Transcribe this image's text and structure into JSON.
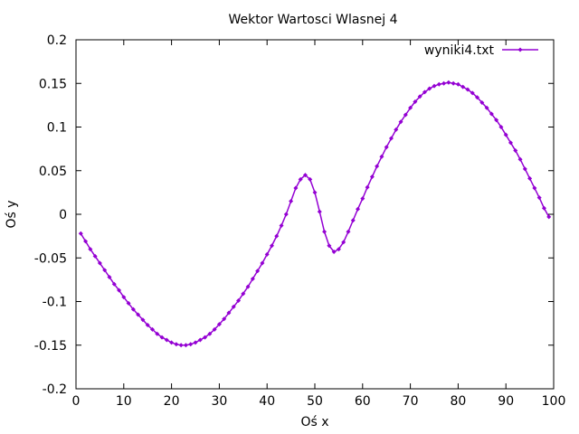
{
  "chart_data": {
    "type": "line",
    "title": "Wektor Wartosci Wlasnej 4",
    "xlabel": "Oś x",
    "ylabel": "Oś y",
    "xlim": [
      0,
      100
    ],
    "ylim": [
      -0.2,
      0.2
    ],
    "x_ticks": [
      "0",
      "10",
      "20",
      "30",
      "40",
      "50",
      "60",
      "70",
      "80",
      "90",
      "100"
    ],
    "y_ticks": [
      "0.2",
      "0.15",
      "0.1",
      "0.05",
      "0",
      "-0.05",
      "-0.1",
      "-0.15",
      "-0.2"
    ],
    "legend_position": "top-right",
    "grid": false,
    "series": [
      {
        "name": "wyniki4.txt",
        "color": "#9400d3",
        "x": [
          1,
          2,
          3,
          4,
          5,
          6,
          7,
          8,
          9,
          10,
          11,
          12,
          13,
          14,
          15,
          16,
          17,
          18,
          19,
          20,
          21,
          22,
          23,
          24,
          25,
          26,
          27,
          28,
          29,
          30,
          31,
          32,
          33,
          34,
          35,
          36,
          37,
          38,
          39,
          40,
          41,
          42,
          43,
          44,
          45,
          46,
          47,
          48,
          49,
          50,
          51,
          52,
          53,
          54,
          55,
          56,
          57,
          58,
          59,
          60,
          61,
          62,
          63,
          64,
          65,
          66,
          67,
          68,
          69,
          70,
          71,
          72,
          73,
          74,
          75,
          76,
          77,
          78,
          79,
          80,
          81,
          82,
          83,
          84,
          85,
          86,
          87,
          88,
          89,
          90,
          91,
          92,
          93,
          94,
          95,
          96,
          97,
          98,
          99
        ],
        "values": [
          -0.022,
          -0.031,
          -0.04,
          -0.048,
          -0.056,
          -0.064,
          -0.072,
          -0.08,
          -0.087,
          -0.095,
          -0.102,
          -0.109,
          -0.115,
          -0.121,
          -0.127,
          -0.132,
          -0.137,
          -0.141,
          -0.144,
          -0.147,
          -0.149,
          -0.15,
          -0.15,
          -0.149,
          -0.147,
          -0.144,
          -0.141,
          -0.137,
          -0.132,
          -0.126,
          -0.12,
          -0.113,
          -0.106,
          -0.099,
          -0.091,
          -0.083,
          -0.074,
          -0.065,
          -0.056,
          -0.046,
          -0.036,
          -0.025,
          -0.013,
          0.0,
          0.015,
          0.03,
          0.04,
          0.045,
          0.04,
          0.025,
          0.003,
          -0.02,
          -0.036,
          -0.043,
          -0.04,
          -0.032,
          -0.02,
          -0.007,
          0.006,
          0.018,
          0.031,
          0.043,
          0.055,
          0.066,
          0.077,
          0.087,
          0.097,
          0.106,
          0.114,
          0.122,
          0.129,
          0.135,
          0.14,
          0.144,
          0.147,
          0.149,
          0.15,
          0.151,
          0.15,
          0.149,
          0.146,
          0.143,
          0.139,
          0.134,
          0.128,
          0.122,
          0.115,
          0.108,
          0.1,
          0.091,
          0.082,
          0.073,
          0.063,
          0.052,
          0.041,
          0.03,
          0.019,
          0.007,
          -0.003
        ]
      }
    ]
  }
}
